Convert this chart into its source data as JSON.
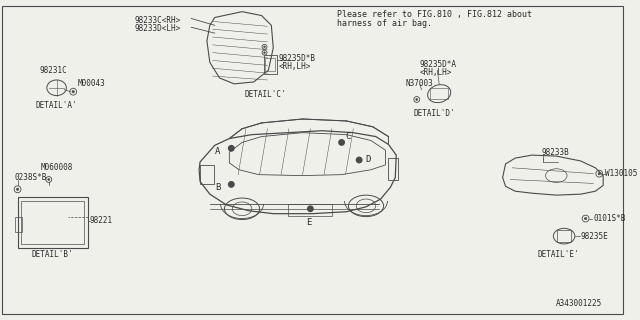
{
  "bg_color": "#f0f0eb",
  "line_color": "#4a4a4a",
  "text_color": "#2a2a2a",
  "title_note_line1": "Please refer to FIG.810 , FIG.812 about",
  "title_note_line2": "harness of air bag.",
  "footer": "A343001225",
  "detail_a_label": "98231C",
  "detail_a_bolt": "M00043",
  "detail_a_caption": "DETAIL'A'",
  "detail_b_part": "98221",
  "detail_b_bolt1": "0238S*B",
  "detail_b_bolt2": "M060008",
  "detail_b_caption": "DETAIL'B'",
  "detail_c_label1": "98235D*B",
  "detail_c_label2": "<RH,LH>",
  "detail_c_caption": "DETAIL'C'",
  "detail_c_top1": "98233C<RH>",
  "detail_c_top2": "98233D<LH>",
  "detail_d_label1": "98235D*A",
  "detail_d_label2": "<RH,LH>",
  "detail_d_bolt": "N37003",
  "detail_d_caption": "DETAIL'D'",
  "detail_e_top": "98233B",
  "detail_e_bolt1": "W130105",
  "detail_e_bolt2": "0101S*B",
  "detail_e_part": "98235E",
  "detail_e_caption": "DETAIL'E'",
  "car_label_A": "A",
  "car_label_B": "B",
  "car_label_C": "C",
  "car_label_D": "D",
  "car_label_E": "E"
}
